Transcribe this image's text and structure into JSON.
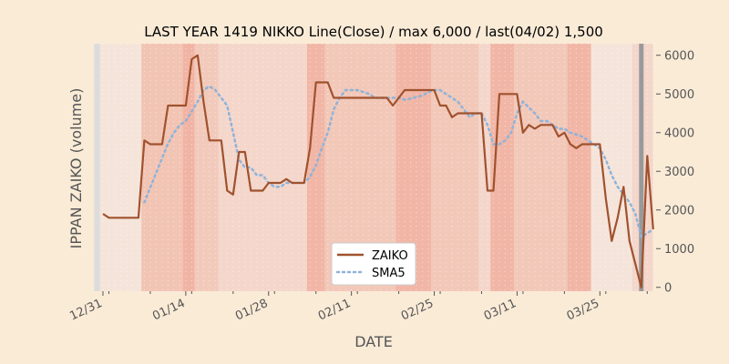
{
  "chart_data": {
    "type": "line",
    "title": "LAST YEAR 1419 NIKKO Line(Close) / max 6,000 / last(04/02) 1,500",
    "xlabel": "DATE",
    "ylabel": "IPPAN ZAIKO (volume)",
    "ylim": [
      -100,
      6300
    ],
    "yticks": [
      0,
      1000,
      2000,
      3000,
      4000,
      5000,
      6000
    ],
    "ytick_labels": [
      "0",
      "1000",
      "2000",
      "3000",
      "4000",
      "5000",
      "6000"
    ],
    "xticks": [
      {
        "day": 0,
        "label": "12/31"
      },
      {
        "day": 14,
        "label": "01/14"
      },
      {
        "day": 28,
        "label": "01/28"
      },
      {
        "day": 42,
        "label": "02/11"
      },
      {
        "day": 56,
        "label": "02/25"
      },
      {
        "day": 70,
        "label": "03/11"
      },
      {
        "day": 84,
        "label": "03/25"
      }
    ],
    "xlim": [
      -2.0,
      93.5
    ],
    "background_color": "#faebd7",
    "colors": {
      "zaiko": "#a0522d",
      "sma": "#8fb3d9",
      "grid": "#ffffff",
      "marker": "#999999"
    },
    "marker_day": 91,
    "legend": {
      "location": "lower-center",
      "entries": [
        "ZAIKO",
        "SMA5"
      ]
    },
    "bands": [
      {
        "d0": -1.5,
        "d1": -0.5,
        "color": "#dcdcdc"
      },
      {
        "d0": -0.5,
        "d1": 6.5,
        "color": "#f5e4da"
      },
      {
        "d0": 6.5,
        "d1": 13.5,
        "color": "#f2c4b4"
      },
      {
        "d0": 13.5,
        "d1": 15.5,
        "color": "#f1b4a4"
      },
      {
        "d0": 15.5,
        "d1": 19.5,
        "color": "#f2cabb"
      },
      {
        "d0": 19.5,
        "d1": 34.5,
        "color": "#f4d6cb"
      },
      {
        "d0": 34.5,
        "d1": 37.5,
        "color": "#f1b6a6"
      },
      {
        "d0": 37.5,
        "d1": 49.5,
        "color": "#f2c8b9"
      },
      {
        "d0": 49.5,
        "d1": 55.5,
        "color": "#f1b6a6"
      },
      {
        "d0": 55.5,
        "d1": 63.5,
        "color": "#f2c8b9"
      },
      {
        "d0": 63.5,
        "d1": 65.5,
        "color": "#f4d6cb"
      },
      {
        "d0": 65.5,
        "d1": 69.5,
        "color": "#f1b6a6"
      },
      {
        "d0": 69.5,
        "d1": 78.5,
        "color": "#f2c8b9"
      },
      {
        "d0": 78.5,
        "d1": 82.5,
        "color": "#f1b6a6"
      },
      {
        "d0": 82.5,
        "d1": 89.5,
        "color": "#f5e4da"
      },
      {
        "d0": 89.5,
        "d1": 93.0,
        "color": "#f4d6cb"
      }
    ],
    "series": [
      {
        "name": "ZAIKO",
        "days": [
          0,
          1,
          2,
          3,
          4,
          5,
          6,
          7,
          8,
          9,
          10,
          11,
          12,
          13,
          14,
          15,
          16,
          17,
          18,
          19,
          20,
          21,
          22,
          23,
          24,
          25,
          26,
          27,
          28,
          29,
          30,
          31,
          32,
          33,
          34,
          35,
          36,
          37,
          38,
          39,
          40,
          41,
          42,
          43,
          44,
          45,
          46,
          47,
          48,
          49,
          50,
          51,
          52,
          53,
          54,
          55,
          56,
          57,
          58,
          59,
          60,
          61,
          62,
          63,
          64,
          65,
          66,
          67,
          68,
          69,
          70,
          71,
          72,
          73,
          74,
          75,
          76,
          77,
          78,
          79,
          80,
          81,
          82,
          83,
          84,
          85,
          86,
          87,
          88,
          89,
          90,
          91,
          92,
          93
        ],
        "values": [
          1900,
          1800,
          1800,
          1800,
          1800,
          1800,
          1800,
          3800,
          3700,
          3700,
          3700,
          4700,
          4700,
          4700,
          4700,
          5900,
          6000,
          4800,
          3800,
          3800,
          3800,
          2500,
          2400,
          3500,
          3500,
          2500,
          2500,
          2500,
          2700,
          2700,
          2700,
          2800,
          2700,
          2700,
          2700,
          3600,
          5300,
          5300,
          5300,
          4900,
          4900,
          4900,
          4900,
          4900,
          4900,
          4900,
          4900,
          4900,
          4900,
          4700,
          4900,
          5100,
          5100,
          5100,
          5100,
          5100,
          5100,
          4700,
          4700,
          4400,
          4500,
          4500,
          4500,
          4500,
          4500,
          2500,
          2500,
          5000,
          5000,
          5000,
          5000,
          4000,
          4200,
          4100,
          4200,
          4200,
          4200,
          3900,
          4000,
          3700,
          3600,
          3700,
          3700,
          3700,
          3700,
          2300,
          1200,
          1800,
          2600,
          1200,
          600,
          0,
          3400,
          1500
        ]
      },
      {
        "name": "SMA5",
        "days": [
          7,
          8,
          9,
          10,
          11,
          12,
          13,
          14,
          15,
          16,
          17,
          18,
          19,
          20,
          21,
          22,
          23,
          24,
          25,
          26,
          27,
          28,
          29,
          30,
          31,
          32,
          33,
          34,
          35,
          36,
          37,
          38,
          39,
          40,
          41,
          42,
          43,
          44,
          45,
          46,
          47,
          48,
          49,
          50,
          51,
          52,
          53,
          54,
          55,
          56,
          57,
          58,
          59,
          60,
          61,
          62,
          63,
          64,
          65,
          66,
          67,
          68,
          69,
          70,
          71,
          72,
          73,
          74,
          75,
          76,
          77,
          78,
          79,
          80,
          81,
          82,
          83,
          84,
          85,
          86,
          87,
          88,
          89,
          90,
          91,
          92,
          93
        ],
        "values": [
          2200,
          2580,
          2960,
          3340,
          3720,
          4000,
          4200,
          4300,
          4550,
          4800,
          5100,
          5200,
          5100,
          4900,
          4700,
          4000,
          3300,
          3100,
          3100,
          2900,
          2900,
          2700,
          2600,
          2600,
          2700,
          2700,
          2700,
          2700,
          2850,
          3150,
          3600,
          4000,
          4600,
          4900,
          5100,
          5100,
          5100,
          5050,
          5000,
          4900,
          4900,
          4900,
          4900,
          4900,
          4850,
          4880,
          4920,
          4960,
          5050,
          5100,
          5100,
          5000,
          4900,
          4800,
          4600,
          4400,
          4500,
          4500,
          4200,
          3700,
          3700,
          3800,
          4000,
          4500,
          4800,
          4650,
          4500,
          4300,
          4300,
          4200,
          4100,
          4100,
          4000,
          3950,
          3900,
          3800,
          3700,
          3600,
          3300,
          2900,
          2600,
          2400,
          2200,
          1900,
          1300,
          1400,
          1500
        ]
      }
    ]
  }
}
